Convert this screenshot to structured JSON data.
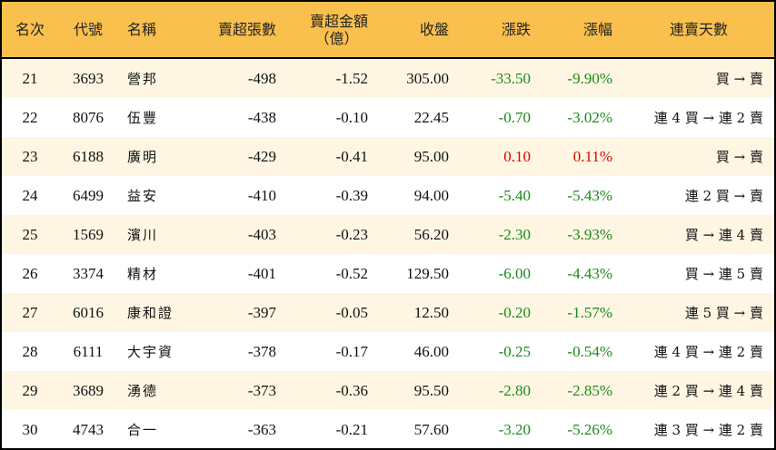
{
  "headers": {
    "rank": "名次",
    "code": "代號",
    "name": "名稱",
    "shares": "賣超張數",
    "amount_l1": "賣超金額",
    "amount_l2": "（億）",
    "close": "收盤",
    "change": "漲跌",
    "pct": "漲幅",
    "streak": "連賣天數"
  },
  "colors": {
    "header_bg": "#F9C04E",
    "row_alt": "#FEF6E3",
    "down": "#1a8a1a",
    "up": "#e00000"
  },
  "rows": [
    {
      "rank": "21",
      "code": "3693",
      "name": "營邦",
      "shares": "-498",
      "amount": "-1.52",
      "close": "305.00",
      "change": "-33.50",
      "pct": "-9.90%",
      "streak": "買 → 賣",
      "dir": "down"
    },
    {
      "rank": "22",
      "code": "8076",
      "name": "伍豐",
      "shares": "-438",
      "amount": "-0.10",
      "close": "22.45",
      "change": "-0.70",
      "pct": "-3.02%",
      "streak": "連 4 買 → 連 2 賣",
      "dir": "down"
    },
    {
      "rank": "23",
      "code": "6188",
      "name": "廣明",
      "shares": "-429",
      "amount": "-0.41",
      "close": "95.00",
      "change": "0.10",
      "pct": "0.11%",
      "streak": "買 → 賣",
      "dir": "up"
    },
    {
      "rank": "24",
      "code": "6499",
      "name": "益安",
      "shares": "-410",
      "amount": "-0.39",
      "close": "94.00",
      "change": "-5.40",
      "pct": "-5.43%",
      "streak": "連 2 買 → 賣",
      "dir": "down"
    },
    {
      "rank": "25",
      "code": "1569",
      "name": "濱川",
      "shares": "-403",
      "amount": "-0.23",
      "close": "56.20",
      "change": "-2.30",
      "pct": "-3.93%",
      "streak": "買 → 連 4 賣",
      "dir": "down"
    },
    {
      "rank": "26",
      "code": "3374",
      "name": "精材",
      "shares": "-401",
      "amount": "-0.52",
      "close": "129.50",
      "change": "-6.00",
      "pct": "-4.43%",
      "streak": "買 → 連 5 賣",
      "dir": "down"
    },
    {
      "rank": "27",
      "code": "6016",
      "name": "康和證",
      "shares": "-397",
      "amount": "-0.05",
      "close": "12.50",
      "change": "-0.20",
      "pct": "-1.57%",
      "streak": "連 5 買 → 賣",
      "dir": "down"
    },
    {
      "rank": "28",
      "code": "6111",
      "name": "大宇資",
      "shares": "-378",
      "amount": "-0.17",
      "close": "46.00",
      "change": "-0.25",
      "pct": "-0.54%",
      "streak": "連 4 買 → 連 2 賣",
      "dir": "down"
    },
    {
      "rank": "29",
      "code": "3689",
      "name": "湧德",
      "shares": "-373",
      "amount": "-0.36",
      "close": "95.50",
      "change": "-2.80",
      "pct": "-2.85%",
      "streak": "連 2 買 → 連 4 賣",
      "dir": "down"
    },
    {
      "rank": "30",
      "code": "4743",
      "name": "合一",
      "shares": "-363",
      "amount": "-0.21",
      "close": "57.60",
      "change": "-3.20",
      "pct": "-5.26%",
      "streak": "連 3 買 → 連 2 賣",
      "dir": "down"
    }
  ]
}
